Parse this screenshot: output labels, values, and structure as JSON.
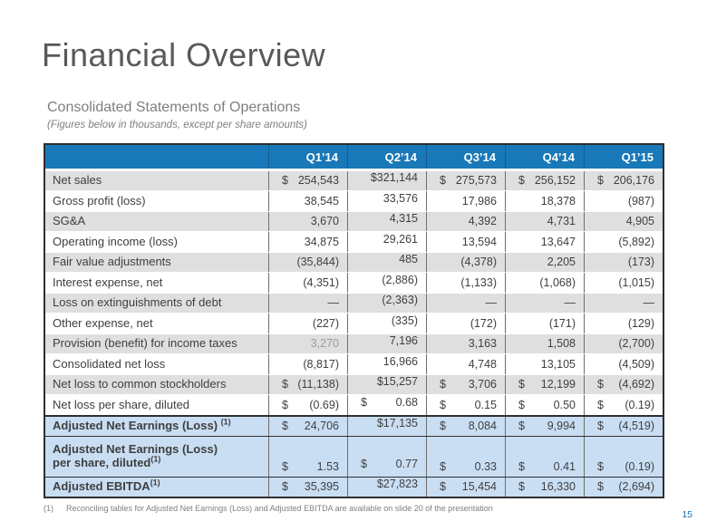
{
  "slide": {
    "title": "Financial Overview",
    "subtitle": "Consolidated Statements of Operations",
    "note": "(Figures below in thousands, except per share amounts)",
    "page_number": "15",
    "footnote": {
      "marker": "(1)",
      "text": "Reconciling tables for Adjusted Net Earnings (Loss) and Adjusted EBITDA are available on slide 20 of the presentation"
    }
  },
  "colors": {
    "header_bg": "#1878B8",
    "stripe_gray": "#DFDFDF",
    "highlight_blue": "#C9DEF3",
    "border_dark": "#2F2F2F",
    "title_gray": "#595959",
    "page_number_blue": "#1F6FB5"
  },
  "table": {
    "columns": [
      "Q1’14",
      "Q2’14",
      "Q3’14",
      "Q4’14",
      "Q1’15"
    ],
    "rows": [
      {
        "label": "Net sales",
        "stripe": "gray",
        "cells": [
          "$ 254,543",
          "$321,144",
          "$ 275,573",
          "$ 256,152",
          "$ 206,176"
        ]
      },
      {
        "label": "Gross profit (loss)",
        "stripe": "white",
        "cells": [
          "38,545",
          "33,576",
          "17,986",
          "18,378",
          "(987)"
        ]
      },
      {
        "label": "SG&A",
        "stripe": "gray",
        "cells": [
          "3,670",
          "4,315",
          "4,392",
          "4,731",
          "4,905"
        ]
      },
      {
        "label": "Operating income (loss)",
        "stripe": "white",
        "cells": [
          "34,875",
          "29,261",
          "13,594",
          "13,647",
          "(5,892)"
        ]
      },
      {
        "label": "Fair value adjustments",
        "stripe": "gray",
        "cells": [
          "(35,844)",
          "485",
          "(4,378)",
          "2,205",
          "(173)"
        ]
      },
      {
        "label": "Interest expense, net",
        "stripe": "white",
        "cells": [
          "(4,351)",
          "(2,886)",
          "(1,133)",
          "(1,068)",
          "(1,015)"
        ]
      },
      {
        "label": "Loss on extinguishments of debt",
        "stripe": "gray",
        "cells": [
          "—",
          "(2,363)",
          "—",
          "—",
          "—"
        ]
      },
      {
        "label": "Other expense, net",
        "stripe": "white",
        "cells": [
          "(227)",
          "(335)",
          "(172)",
          "(171)",
          "(129)"
        ]
      },
      {
        "label": "Provision (benefit) for income taxes",
        "stripe": "gray",
        "cells": [
          {
            "v": "3,270",
            "muted": true
          },
          "7,196",
          "3,163",
          "1,508",
          "(2,700)"
        ]
      },
      {
        "label": "Consolidated net loss",
        "stripe": "white",
        "cells": [
          "(8,817)",
          "16,966",
          "4,748",
          "13,105",
          "(4,509)"
        ]
      },
      {
        "label": "Net loss to common stockholders",
        "stripe": "gray",
        "cells": [
          "$ (11,138)",
          "$15,257",
          "$ 3,706",
          "$ 12,199",
          "$ (4,692)"
        ]
      },
      {
        "label": "Net loss per share, diluted",
        "stripe": "white",
        "cells": [
          "$ (0.69)",
          "$ 0.68",
          "$ 0.15",
          "$ 0.50",
          "$ (0.19)"
        ]
      },
      {
        "label": "Adjusted Net Earnings (Loss) ",
        "sup": "(1)",
        "stripe": "blue",
        "rule": "thick",
        "cells": [
          "$ 24,706",
          "$17,135",
          "$ 8,084",
          "$ 9,994",
          "$ (4,519)"
        ]
      },
      {
        "label": "Adjusted Net Earnings  (Loss)",
        "label2": "per share, diluted",
        "sup2": "(1)",
        "stripe": "blue",
        "rule": "thin",
        "double": true,
        "cells": [
          "$ 1.53",
          "$ 0.77",
          "$ 0.33",
          "$ 0.41",
          "$ (0.19)"
        ]
      },
      {
        "label": "Adjusted EBITDA",
        "sup": "(1)",
        "stripe": "blue",
        "rule": "thin",
        "cells": [
          "$ 35,395",
          "$27,823",
          "$ 15,454",
          "$ 16,330",
          "$ (2,694)"
        ]
      }
    ]
  }
}
